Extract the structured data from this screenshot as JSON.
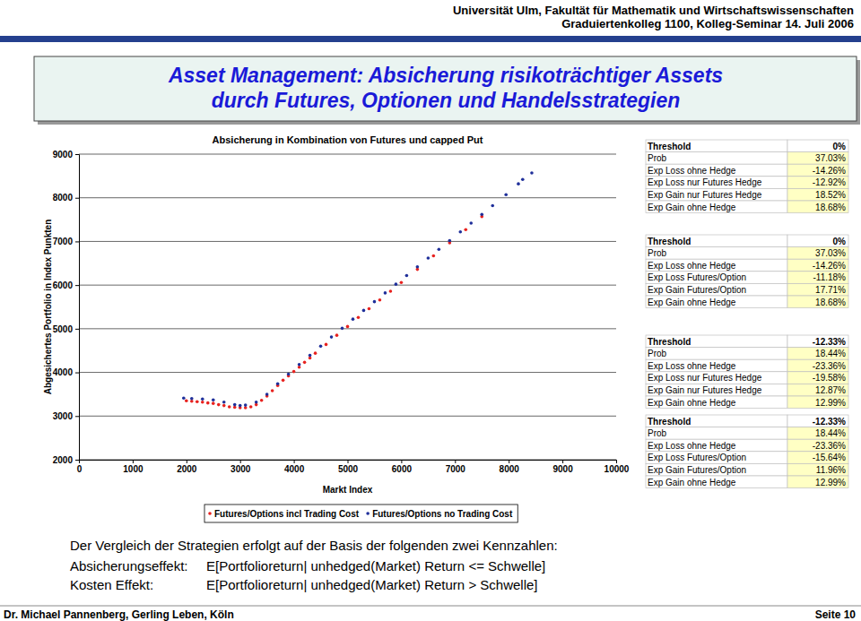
{
  "header": {
    "lines": [
      "Universität Ulm, Fakultät für Mathematik und Wirtschaftswissenschaften",
      "Graduiertenkolleg 1100, Kolleg-Seminar 14. Juli 2006"
    ]
  },
  "title": {
    "lines": [
      "Asset Management: Absicherung risikoträchtiger Assets",
      "durch Futures, Optionen und Handelsstrategien"
    ]
  },
  "chart_data": {
    "type": "scatter",
    "title": "Absicherung in Kombination von Futures und capped Put",
    "x_label": "Markt Index",
    "y_label": "Abgesichertes Portfolio in Index Punkten",
    "xlim": [
      0,
      10000
    ],
    "xticks": [
      0,
      1000,
      2000,
      3000,
      4000,
      5000,
      6000,
      7000,
      8000,
      9000,
      10000
    ],
    "ylim": [
      2000,
      9000
    ],
    "yticks": [
      2000,
      3000,
      4000,
      5000,
      6000,
      7000,
      8000,
      9000
    ],
    "grid": true,
    "legend": "bottom",
    "series": [
      {
        "name": "Futures/Options incl Trading Cost",
        "color": "#e8221f",
        "marker": "circle",
        "x": [
          2000,
          2100,
          2200,
          2300,
          2400,
          2500,
          2600,
          2700,
          2800,
          2900,
          3000,
          3100,
          3200,
          3300,
          3400,
          3500,
          3600,
          3700,
          3800,
          3900,
          4000,
          4100,
          4200,
          4300,
          4400,
          4600,
          4800,
          5000,
          5200,
          5400,
          5600,
          5800,
          6000,
          6300,
          6600,
          6900,
          7200,
          7500
        ],
        "values": [
          3350,
          3340,
          3330,
          3320,
          3300,
          3290,
          3260,
          3240,
          3210,
          3200,
          3190,
          3190,
          3210,
          3260,
          3360,
          3460,
          3580,
          3700,
          3820,
          3920,
          4020,
          4120,
          4230,
          4330,
          4440,
          4640,
          4850,
          5050,
          5260,
          5460,
          5660,
          5860,
          6060,
          6360,
          6670,
          6970,
          7270,
          7570
        ]
      },
      {
        "name": "Futures/Options no Trading Cost",
        "color": "#1f2f9a",
        "marker": "circle",
        "x": [
          1950,
          2100,
          2300,
          2500,
          2700,
          2900,
          3000,
          3100,
          3300,
          3500,
          3700,
          3900,
          4100,
          4300,
          4500,
          4700,
          4900,
          5100,
          5300,
          5500,
          5700,
          5900,
          6100,
          6300,
          6500,
          6700,
          6900,
          7100,
          7300,
          7500,
          7700,
          7950,
          8180,
          8260,
          8430
        ],
        "values": [
          3410,
          3400,
          3390,
          3370,
          3320,
          3260,
          3240,
          3250,
          3320,
          3500,
          3740,
          3960,
          4180,
          4390,
          4600,
          4810,
          5010,
          5220,
          5420,
          5620,
          5820,
          6020,
          6220,
          6420,
          6620,
          6820,
          7020,
          7220,
          7420,
          7620,
          7820,
          8070,
          8320,
          8420,
          8570
        ]
      }
    ]
  },
  "tables": [
    {
      "rows": [
        [
          "Threshold",
          "0%"
        ],
        [
          "Prob",
          "37.03%"
        ],
        [
          "Exp Loss ohne Hedge",
          "-14.26%"
        ],
        [
          "Exp Loss nur Futures Hedge",
          "-12.92%"
        ],
        [
          "Exp Gain nur Futures Hedge",
          "18.52%"
        ],
        [
          "Exp Gain ohne Hedge",
          "18.68%"
        ]
      ]
    },
    {
      "rows": [
        [
          "Threshold",
          "0%"
        ],
        [
          "Prob",
          "37.03%"
        ],
        [
          "Exp Loss ohne Hedge",
          "-14.26%"
        ],
        [
          "Exp Loss Futures/Option",
          "-11.18%"
        ],
        [
          "Exp Gain Futures/Option",
          "17.71%"
        ],
        [
          "Exp Gain ohne Hedge",
          "18.68%"
        ]
      ]
    },
    {
      "rows": [
        [
          "Threshold",
          "-12.33%"
        ],
        [
          "Prob",
          "18.44%"
        ],
        [
          "Exp Loss ohne Hedge",
          "-23.36%"
        ],
        [
          "Exp Loss nur Futures Hedge",
          "-19.58%"
        ],
        [
          "Exp Gain nur Futures Hedge",
          "12.87%"
        ],
        [
          "Exp Gain ohne Hedge",
          "12.99%"
        ]
      ]
    },
    {
      "rows": [
        [
          "Threshold",
          "-12.33%"
        ],
        [
          "Prob",
          "18.44%"
        ],
        [
          "Exp Loss ohne Hedge",
          "-23.36%"
        ],
        [
          "Exp Loss Futures/Option",
          "-15.64%"
        ],
        [
          "Exp Gain Futures/Option",
          "11.96%"
        ],
        [
          "Exp Gain ohne Hedge",
          "12.99%"
        ]
      ]
    }
  ],
  "text": {
    "intro": "Der Vergleich der Strategien erfolgt auf der Basis der folgenden zwei Kennzahlen:",
    "definitions": [
      {
        "term": "Absicherungseffekt:",
        "formula": "E[Portfolioreturn| unhedged(Market) Return <= Schwelle]"
      },
      {
        "term": "Kosten Effekt:",
        "formula": "E[Portfolioreturn| unhedged(Market) Return > Schwelle]"
      }
    ]
  },
  "footer": {
    "author": "Dr. Michael Pannenberg, Gerling Leben, Köln",
    "page": "Seite 10"
  }
}
